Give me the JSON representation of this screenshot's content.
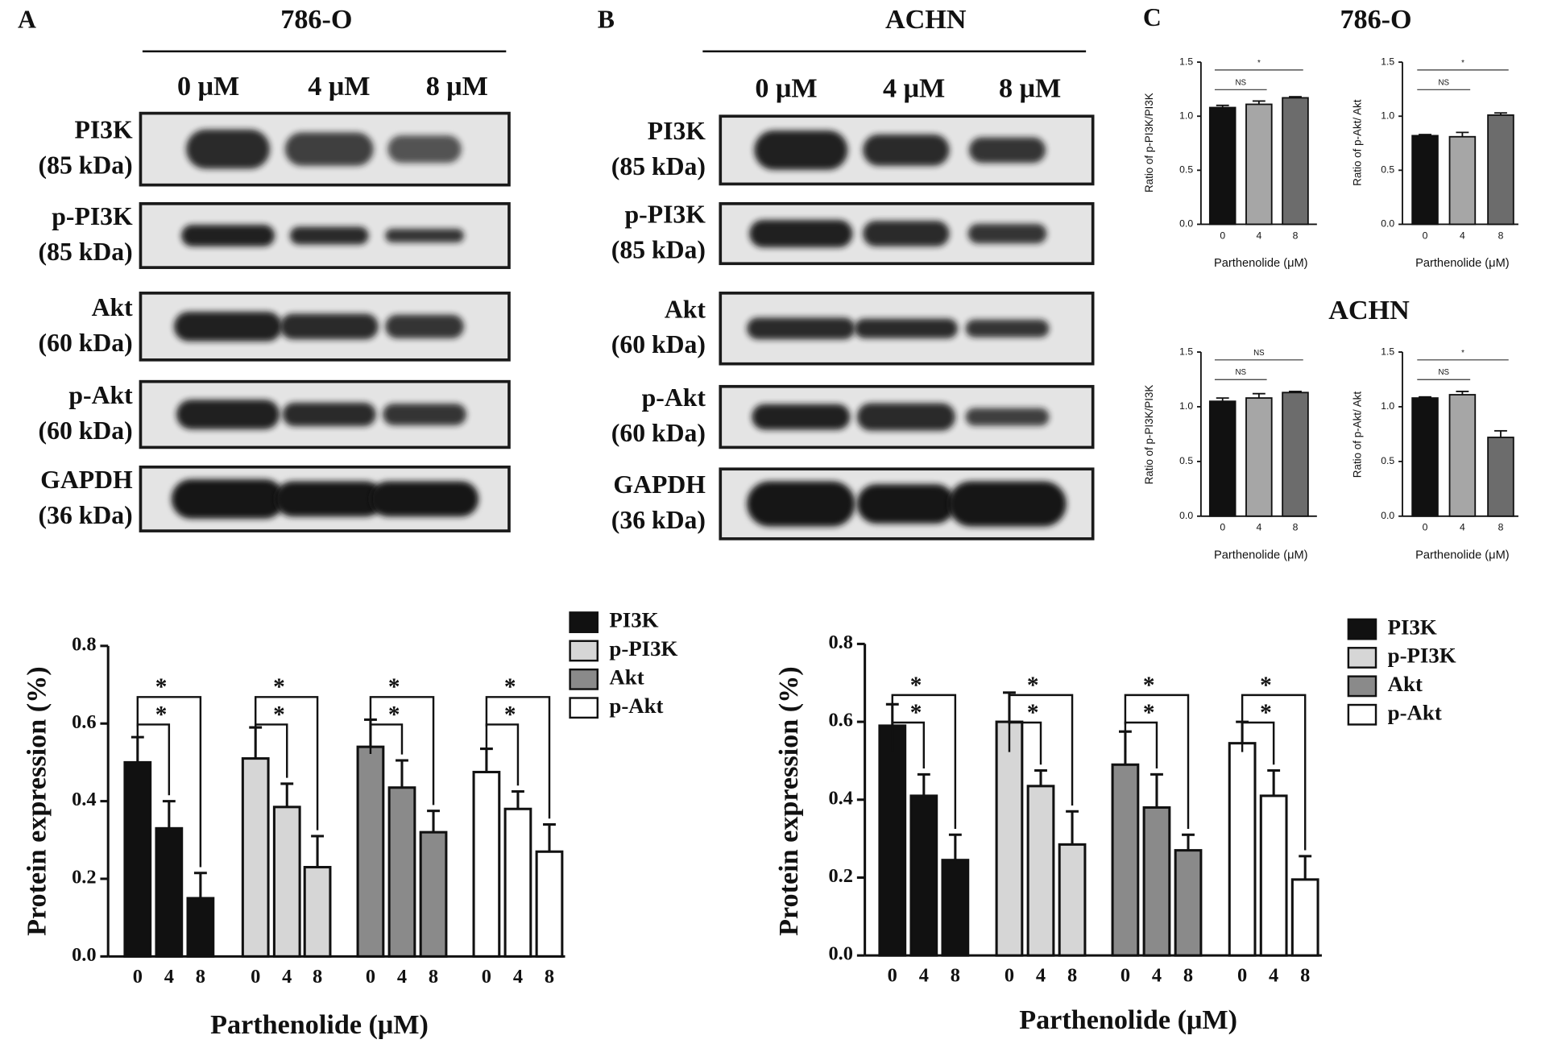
{
  "panel_a": {
    "label": "A",
    "cell_line": "786-O",
    "doses": [
      "0 μM",
      "4 μM",
      "8 μM"
    ],
    "rows": [
      [
        "PI3K",
        "(85 kDa)"
      ],
      [
        "p-PI3K",
        "(85 kDa)"
      ],
      [
        "Akt",
        "(60 kDa)"
      ],
      [
        "p-Akt",
        "(60 kDa)"
      ],
      [
        "GAPDH",
        "(36 kDa)"
      ]
    ]
  },
  "panel_b": {
    "label": "B",
    "cell_line": "ACHN",
    "doses": [
      "0 μM",
      "4 μM",
      "8 μM"
    ],
    "rows": [
      [
        "PI3K",
        "(85 kDa)"
      ],
      [
        "p-PI3K",
        "(85 kDa)"
      ],
      [
        "Akt",
        "(60 kDa)"
      ],
      [
        "p-Akt",
        "(60 kDa)"
      ],
      [
        "GAPDH",
        "(36 kDa)"
      ]
    ]
  },
  "panel_c": {
    "label": "C",
    "titles": [
      "786-O",
      "ACHN"
    ]
  },
  "chart_data": [
    {
      "type": "bar",
      "xlabel": "Parthenolide (μM)",
      "ylabel": "Protein expression (%)",
      "categories": [
        "0",
        "4",
        "8"
      ],
      "ylim": [
        0,
        0.8
      ],
      "yticks": [
        {
          "value": 0,
          "label": "0.0"
        },
        0.2,
        0.4,
        0.6,
        0.8
      ],
      "series": [
        {
          "name": "PI3K",
          "color": "#111111",
          "values": [
            0.5,
            0.33,
            0.15
          ],
          "errors": [
            0.065,
            0.07,
            0.065
          ],
          "annotations": [
            "*",
            "*"
          ]
        },
        {
          "name": "p-PI3K",
          "color": "#d6d6d6",
          "values": [
            0.51,
            0.385,
            0.23
          ],
          "errors": [
            0.08,
            0.06,
            0.08
          ],
          "annotations": [
            "*",
            "*"
          ]
        },
        {
          "name": "Akt",
          "color": "#8a8a8a",
          "values": [
            0.54,
            0.435,
            0.32
          ],
          "errors": [
            0.07,
            0.07,
            0.055
          ],
          "annotations": [
            "*",
            "*"
          ]
        },
        {
          "name": "p-Akt",
          "color": "#ffffff",
          "values": [
            0.475,
            0.38,
            0.27
          ],
          "errors": [
            0.06,
            0.045,
            0.07
          ],
          "annotations": [
            "*",
            "*"
          ]
        }
      ]
    },
    {
      "type": "bar",
      "xlabel": "Parthenolide (μM)",
      "ylabel": "Protein expression (%)",
      "categories": [
        "0",
        "4",
        "8"
      ],
      "ylim": [
        0,
        0.8
      ],
      "yticks": [
        {
          "value": 0,
          "label": "0.0"
        },
        0.2,
        0.4,
        0.6,
        0.8
      ],
      "series": [
        {
          "name": "PI3K",
          "color": "#111111",
          "values": [
            0.59,
            0.41,
            0.245
          ],
          "errors": [
            0.055,
            0.055,
            0.065
          ],
          "annotations": [
            "*",
            "*"
          ]
        },
        {
          "name": "p-PI3K",
          "color": "#d6d6d6",
          "values": [
            0.6,
            0.435,
            0.285
          ],
          "errors": [
            0.075,
            0.04,
            0.085
          ],
          "annotations": [
            "*",
            "*"
          ]
        },
        {
          "name": "Akt",
          "color": "#8a8a8a",
          "values": [
            0.49,
            0.38,
            0.27
          ],
          "errors": [
            0.085,
            0.085,
            0.04
          ],
          "annotations": [
            "*",
            "*"
          ]
        },
        {
          "name": "p-Akt",
          "color": "#ffffff",
          "values": [
            0.545,
            0.41,
            0.195
          ],
          "errors": [
            0.055,
            0.065,
            0.06
          ],
          "annotations": [
            "*",
            "*"
          ]
        }
      ]
    },
    {
      "type": "bar",
      "xlabel": "Parthenolide (μM)",
      "ylabel": "Ratio of p-PI3K/PI3K",
      "categories": [
        "0",
        "4",
        "8"
      ],
      "colors": [
        "#111111",
        "#a6a6a6",
        "#6c6c6c"
      ],
      "values": [
        1.08,
        1.11,
        1.17
      ],
      "errors": [
        0.02,
        0.03,
        0.01
      ],
      "annotations": [
        "NS",
        "*"
      ],
      "ylim": [
        0,
        1.5
      ],
      "yticks": [
        {
          "value": 0,
          "label": "0.0"
        },
        0.5,
        {
          "value": 1,
          "label": "1.0"
        },
        1.5
      ]
    },
    {
      "type": "bar",
      "xlabel": "Parthenolide (μM)",
      "ylabel": "Ratio of p-Akt/ Akt",
      "categories": [
        "0",
        "4",
        "8"
      ],
      "colors": [
        "#111111",
        "#a6a6a6",
        "#6c6c6c"
      ],
      "values": [
        0.82,
        0.81,
        1.01
      ],
      "errors": [
        0.01,
        0.04,
        0.02
      ],
      "annotations": [
        "NS",
        "*"
      ],
      "ylim": [
        0,
        1.5
      ],
      "yticks": [
        {
          "value": 0,
          "label": "0.0"
        },
        0.5,
        {
          "value": 1,
          "label": "1.0"
        },
        1.5
      ]
    },
    {
      "type": "bar",
      "xlabel": "Parthenolide (μM)",
      "ylabel": "Ratio of p-PI3K/PI3K",
      "categories": [
        "0",
        "4",
        "8"
      ],
      "colors": [
        "#111111",
        "#a6a6a6",
        "#6c6c6c"
      ],
      "values": [
        1.05,
        1.08,
        1.13
      ],
      "errors": [
        0.03,
        0.04,
        0.01
      ],
      "annotations": [
        "NS",
        "NS"
      ],
      "ylim": [
        0,
        1.5
      ],
      "yticks": [
        {
          "value": 0,
          "label": "0.0"
        },
        0.5,
        {
          "value": 1,
          "label": "1.0"
        },
        1.5
      ]
    },
    {
      "type": "bar",
      "xlabel": "Parthenolide (μM)",
      "ylabel": "Ratio of p-Akt/ Akt",
      "categories": [
        "0",
        "4",
        "8"
      ],
      "colors": [
        "#111111",
        "#a6a6a6",
        "#6c6c6c"
      ],
      "values": [
        1.08,
        1.11,
        0.72
      ],
      "errors": [
        0.01,
        0.03,
        0.06
      ],
      "annotations": [
        "NS",
        "*"
      ],
      "ylim": [
        0,
        1.5
      ],
      "yticks": [
        {
          "value": 0,
          "label": "0.0"
        },
        0.5,
        {
          "value": 1,
          "label": "1.0"
        },
        1.5
      ]
    }
  ]
}
